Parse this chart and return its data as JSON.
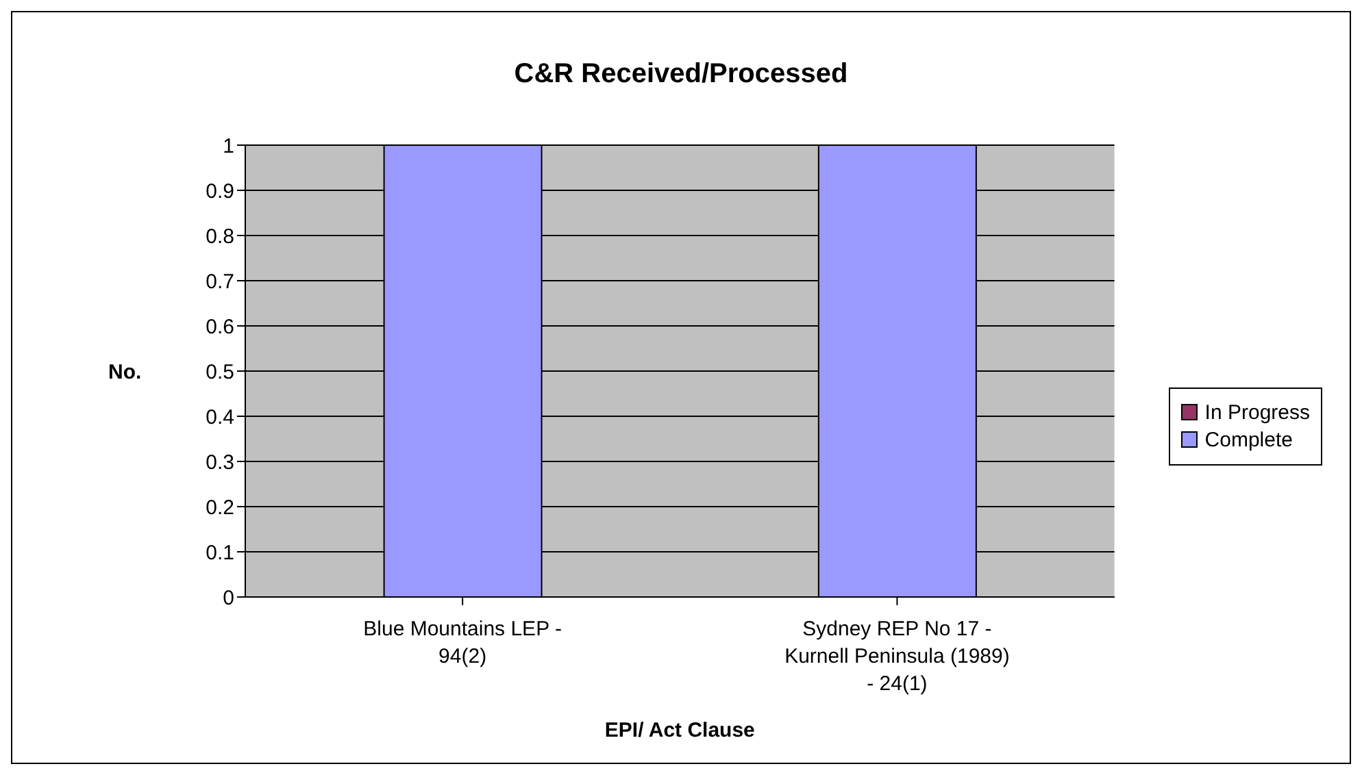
{
  "chart_data": {
    "type": "bar",
    "title": "C&R Received/Processed",
    "xlabel": "EPI/ Act Clause",
    "ylabel": "No.",
    "categories": [
      "Blue Mountains LEP - 94(2)",
      "Sydney REP No 17 - Kurnell Peninsula (1989) - 24(1)"
    ],
    "series": [
      {
        "name": "Complete",
        "color": "#9999ff",
        "values": [
          1,
          1
        ]
      },
      {
        "name": "In Progress",
        "color": "#993366",
        "values": [
          0,
          0
        ]
      }
    ],
    "stacked": true,
    "ylim": [
      0,
      1
    ],
    "yticks": [
      0,
      0.1,
      0.2,
      0.3,
      0.4,
      0.5,
      0.6,
      0.7,
      0.8,
      0.9,
      1
    ],
    "grid": "y",
    "legend": "right"
  }
}
